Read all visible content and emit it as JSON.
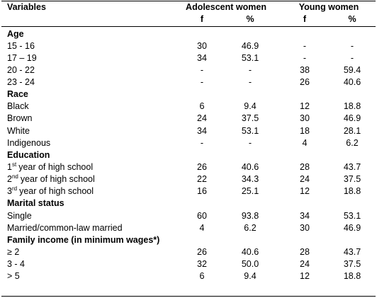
{
  "table": {
    "headers": {
      "variables": "Variables",
      "groups": [
        "Adolescent women",
        "Young women"
      ],
      "sub": [
        "f",
        "%",
        "f",
        "%"
      ]
    },
    "sections": [
      {
        "title": "Age",
        "rows": [
          {
            "label": "15 - 16",
            "cells": [
              "30",
              "46.9",
              "-",
              "-"
            ]
          },
          {
            "label": "17 – 19",
            "cells": [
              "34",
              "53.1",
              "-",
              "-"
            ]
          },
          {
            "label": "20 - 22",
            "cells": [
              "-",
              "-",
              "38",
              "59.4"
            ]
          },
          {
            "label": "23 - 24",
            "cells": [
              "-",
              "-",
              "26",
              "40.6"
            ]
          }
        ]
      },
      {
        "title": "Race",
        "rows": [
          {
            "label": "Black",
            "cells": [
              "6",
              "9.4",
              "12",
              "18.8"
            ]
          },
          {
            "label": "Brown",
            "cells": [
              "24",
              "37.5",
              "30",
              "46.9"
            ]
          },
          {
            "label": "White",
            "cells": [
              "34",
              "53.1",
              "18",
              "28.1"
            ]
          },
          {
            "label": "Indigenous",
            "cells": [
              "-",
              "-",
              "4",
              "6.2"
            ]
          }
        ]
      },
      {
        "title": "Education",
        "rows": [
          {
            "label": {
              "num": "1",
              "sup": "st",
              "text": "year of high school"
            },
            "cells": [
              "26",
              "40.6",
              "28",
              "43.7"
            ]
          },
          {
            "label": {
              "num": "2",
              "sup": "nd",
              "text": "year of high school"
            },
            "cells": [
              "22",
              "34.3",
              "24",
              "37.5"
            ]
          },
          {
            "label": {
              "num": "3",
              "sup": "rd",
              "text": "year of high school"
            },
            "cells": [
              "16",
              "25.1",
              "12",
              "18.8"
            ]
          }
        ]
      },
      {
        "title": "Marital status",
        "rows": [
          {
            "label": "Single",
            "cells": [
              "60",
              "93.8",
              "34",
              "53.1"
            ]
          },
          {
            "label": "Married/common-law married",
            "cells": [
              "4",
              "6.2",
              "30",
              "46.9"
            ]
          }
        ]
      },
      {
        "title": "Family income (in minimum wages*)",
        "rows": [
          {
            "label": "≥ 2",
            "cells": [
              "26",
              "40.6",
              "28",
              "43.7"
            ]
          },
          {
            "label": "3 - 4",
            "cells": [
              "32",
              "50.0",
              "24",
              "37.5"
            ]
          },
          {
            "label": "> 5",
            "cells": [
              "6",
              "9.4",
              "12",
              "18.8"
            ]
          }
        ]
      }
    ]
  }
}
